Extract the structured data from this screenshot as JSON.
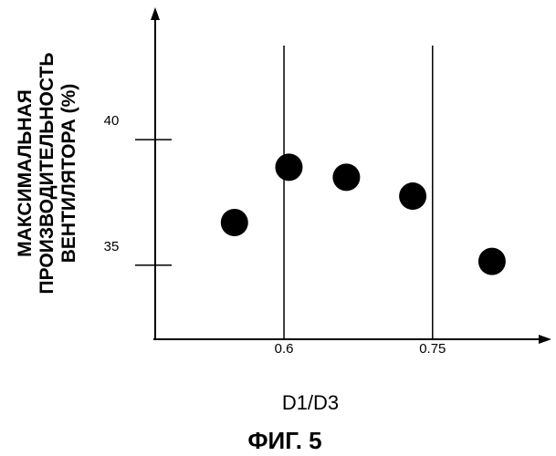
{
  "chart_data": {
    "type": "scatter",
    "title": "",
    "xlabel": "D1/D3",
    "ylabel_lines": [
      "МАКСИМАЛЬНАЯ",
      "ПРОИЗВОДИТЕЛЬНОСТЬ",
      "ВЕНТИЛЯТОРА (%)"
    ],
    "x_ticks": [
      {
        "value": 0.6,
        "label": "0.6"
      },
      {
        "value": 0.75,
        "label": "0.75"
      }
    ],
    "y_ticks": [
      {
        "value": 35,
        "label": "35"
      },
      {
        "value": 40,
        "label": "40"
      }
    ],
    "xlim": [
      0.47,
      0.87
    ],
    "ylim": [
      32.05,
      45.27
    ],
    "x_gridlines": [
      0.6,
      0.75
    ],
    "grid": false,
    "legend": "none",
    "points": [
      {
        "x": 0.55,
        "y": 36.7
      },
      {
        "x": 0.605,
        "y": 38.9
      },
      {
        "x": 0.663,
        "y": 38.5
      },
      {
        "x": 0.73,
        "y": 37.75
      },
      {
        "x": 0.81,
        "y": 35.15
      }
    ],
    "marker_color": "#000000",
    "axis_color": "#000000"
  },
  "figure": {
    "caption": "ФИГ. 5"
  }
}
